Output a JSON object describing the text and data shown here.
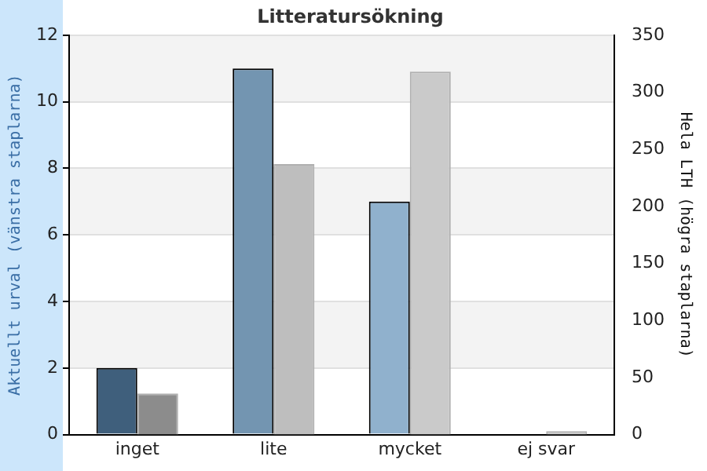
{
  "chart_data": {
    "type": "bar",
    "title": "Litteratursökning",
    "ylabel": "Aktuellt urval (vänstra staplarna)",
    "y2label": "Hela LTH (högra staplarna)",
    "categories": [
      "inget",
      "lite",
      "mycket",
      "ej svar"
    ],
    "series": [
      {
        "colors": [
          "#3f5f7c",
          "#7395b1",
          "#90b1cd",
          "#a8c4dc"
        ],
        "values": [
          2,
          11,
          7,
          0
        ]
      },
      {
        "colors": [
          "#8c8c8c",
          "#bebebe",
          "#cacaca",
          "#cacaca"
        ],
        "values": [
          36,
          237,
          318,
          3
        ],
        "axis": "y2"
      }
    ],
    "ylim": [
      0,
      12
    ],
    "yticks": [
      0,
      2,
      4,
      6,
      8,
      10,
      12
    ],
    "y2lim": [
      0,
      350
    ],
    "y2ticks": [
      0,
      50,
      100,
      150,
      200,
      250,
      300,
      350
    ],
    "grid": "y",
    "legend": false
  }
}
